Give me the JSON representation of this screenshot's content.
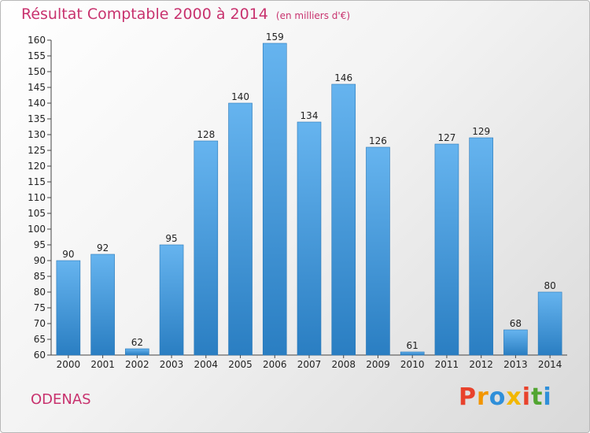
{
  "title": "Résultat Comptable 2000 à 2014",
  "subtitle": "(en milliers d'€)",
  "location": "ODENAS",
  "logo_text": "Proxiti",
  "colors": {
    "title": "#c8326e",
    "bar_light": "#66b4ef",
    "bar_dark": "#2a7ec2",
    "logo": [
      "#e8422c",
      "#f29500",
      "#2f8fd9",
      "#f2b700",
      "#e8422c",
      "#52a531",
      "#2f8fd9"
    ]
  },
  "chart_data": {
    "type": "bar",
    "categories": [
      "2000",
      "2001",
      "2002",
      "2003",
      "2004",
      "2005",
      "2006",
      "2007",
      "2008",
      "2009",
      "2010",
      "2011",
      "2012",
      "2013",
      "2014"
    ],
    "values": [
      90,
      92,
      62,
      95,
      128,
      140,
      159,
      134,
      146,
      126,
      61,
      127,
      129,
      68,
      80
    ],
    "ylim": [
      60,
      160
    ],
    "ytick_step": 5,
    "grid": false,
    "xlabel": "",
    "ylabel": ""
  }
}
